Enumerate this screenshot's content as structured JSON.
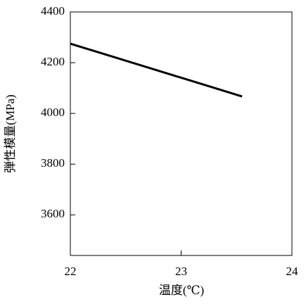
{
  "chart_data": {
    "type": "line",
    "x_label": "温度(℃)",
    "y_label": "弾性模量(MPa)",
    "x": [
      22,
      23.55
    ],
    "series": [
      {
        "color": "#000000",
        "values": [
          4275,
          4067
        ]
      }
    ],
    "xlim": [
      22,
      24
    ],
    "xticks": [
      22,
      23,
      24
    ],
    "ylim": [
      3440,
      4400
    ],
    "yticks": [
      3600,
      3800,
      4000,
      4200,
      4400
    ]
  }
}
